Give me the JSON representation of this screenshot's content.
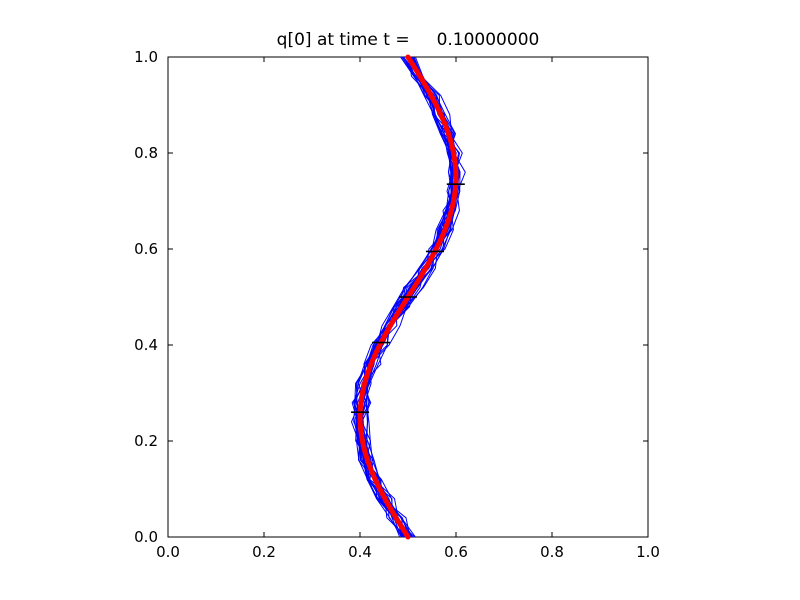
{
  "figure": {
    "background": "#ffffff"
  },
  "chart_data": {
    "type": "line",
    "title": "q[0] at time t =     0.10000000",
    "xlabel": "",
    "ylabel": "",
    "xlim": [
      0.0,
      1.0
    ],
    "ylim": [
      0.0,
      1.0
    ],
    "grid": false,
    "legend": "none",
    "xticks": [
      0.0,
      0.2,
      0.4,
      0.6,
      0.8,
      1.0
    ],
    "yticks": [
      0.0,
      0.2,
      0.4,
      0.6,
      0.8,
      1.0
    ],
    "xticklabels": [
      "0.0",
      "0.2",
      "0.4",
      "0.6",
      "0.8",
      "1.0"
    ],
    "yticklabels": [
      "0.0",
      "0.2",
      "0.4",
      "0.6",
      "0.8",
      "1.0"
    ],
    "series": [
      {
        "name": "ensemble-solution-lines",
        "color": "#0000ff",
        "line_width": 1
      },
      {
        "name": "q0-solution-curve",
        "color": "#ff0000",
        "line_width": 5
      }
    ],
    "main_color": "#ff0000",
    "main_curve": {
      "comment": "x = 0.5 - 0.1*sin(2*pi*y), S-shaped curve read off the plot",
      "x": [
        0.5,
        0.4875,
        0.4751,
        0.4632,
        0.4518,
        0.4412,
        0.4315,
        0.4229,
        0.4156,
        0.4095,
        0.4049,
        0.4018,
        0.4002,
        0.4002,
        0.4018,
        0.4049,
        0.4095,
        0.4156,
        0.4229,
        0.4315,
        0.4412,
        0.4518,
        0.4632,
        0.4751,
        0.4875,
        0.5,
        0.5125,
        0.5249,
        0.5368,
        0.5482,
        0.5588,
        0.5685,
        0.5771,
        0.5844,
        0.5905,
        0.5951,
        0.5982,
        0.5998,
        0.5998,
        0.5982,
        0.5951,
        0.5905,
        0.5844,
        0.5771,
        0.5685,
        0.5588,
        0.5482,
        0.5368,
        0.5249,
        0.5125,
        0.5
      ],
      "y": [
        0.0,
        0.02,
        0.04,
        0.06,
        0.08,
        0.1,
        0.12,
        0.14,
        0.16,
        0.18,
        0.2,
        0.22,
        0.24,
        0.26,
        0.28,
        0.3,
        0.32,
        0.34,
        0.36,
        0.38,
        0.4,
        0.42,
        0.44,
        0.46,
        0.48,
        0.5,
        0.52,
        0.54,
        0.56,
        0.58,
        0.6,
        0.62,
        0.64,
        0.66,
        0.68,
        0.7,
        0.72,
        0.74,
        0.76,
        0.78,
        0.8,
        0.82,
        0.84,
        0.86,
        0.88,
        0.9,
        0.92,
        0.94,
        0.96,
        0.98,
        1.0
      ]
    },
    "ensemble": {
      "count": 24,
      "x_jitter": 0.016,
      "y_step": 0.04,
      "seed": 13,
      "color": "#0000ff",
      "line_width": 1
    },
    "markers": {
      "color": "#000000",
      "shape": "horizontal-dash",
      "points": [
        [
          0.4002,
          0.26
        ],
        [
          0.4438,
          0.405
        ],
        [
          0.5,
          0.5
        ],
        [
          0.5562,
          0.595
        ],
        [
          0.5996,
          0.735
        ]
      ]
    }
  }
}
